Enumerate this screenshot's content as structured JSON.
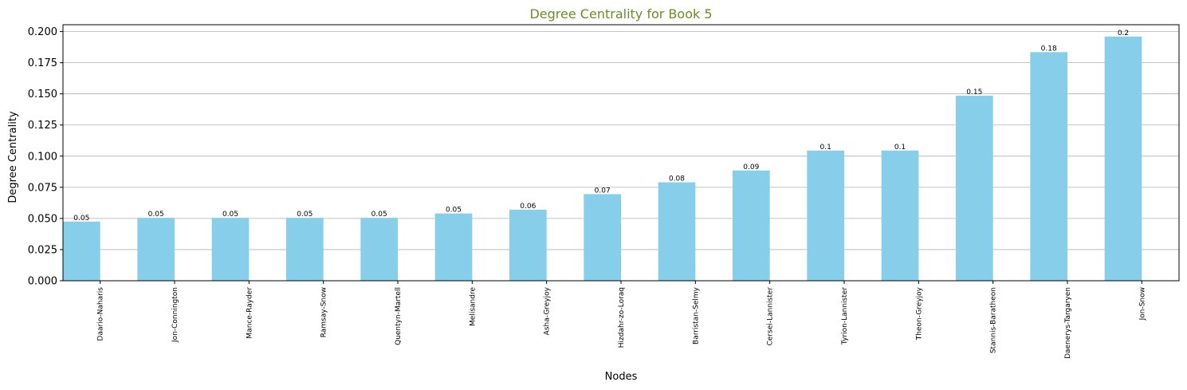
{
  "chart_data": {
    "type": "bar",
    "title": "Degree Centrality for Book 5",
    "xlabel": "Nodes",
    "ylabel": "Degree Centrality",
    "categories": [
      "Daario-Naharis",
      "Jon-Connington",
      "Mance-Rayder",
      "Ramsay-Snow",
      "Quentyn-Martell",
      "Melisandre",
      "Asha-Greyjoy",
      "Hizdahr-zo-Loraq",
      "Barristan-Selmy",
      "Cersei-Lannister",
      "Tyrion-Lannister",
      "Theon-Greyjoy",
      "Stannis-Baratheon",
      "Daenerys-Targaryen",
      "Jon-Snow"
    ],
    "values": [
      0.0475,
      0.0505,
      0.0505,
      0.0505,
      0.0505,
      0.054,
      0.057,
      0.0695,
      0.079,
      0.0885,
      0.1045,
      0.1045,
      0.1485,
      0.1835,
      0.196
    ],
    "data_labels": [
      "0.05",
      "0.05",
      "0.05",
      "0.05",
      "0.05",
      "0.05",
      "0.06",
      "0.07",
      "0.08",
      "0.09",
      "0.1",
      "0.1",
      "0.15",
      "0.18",
      "0.2"
    ],
    "ylim": [
      0,
      0.2055
    ],
    "yticks": [
      0.0,
      0.025,
      0.05,
      0.075,
      0.1,
      0.125,
      0.15,
      0.175,
      0.2
    ],
    "ytick_labels": [
      "0.000",
      "0.025",
      "0.050",
      "0.075",
      "0.100",
      "0.125",
      "0.150",
      "0.175",
      "0.200"
    ],
    "grid": "y",
    "bar_color": "#87ceeb",
    "title_color": "#6b8e23",
    "grid_color": "#b0b0b0"
  }
}
